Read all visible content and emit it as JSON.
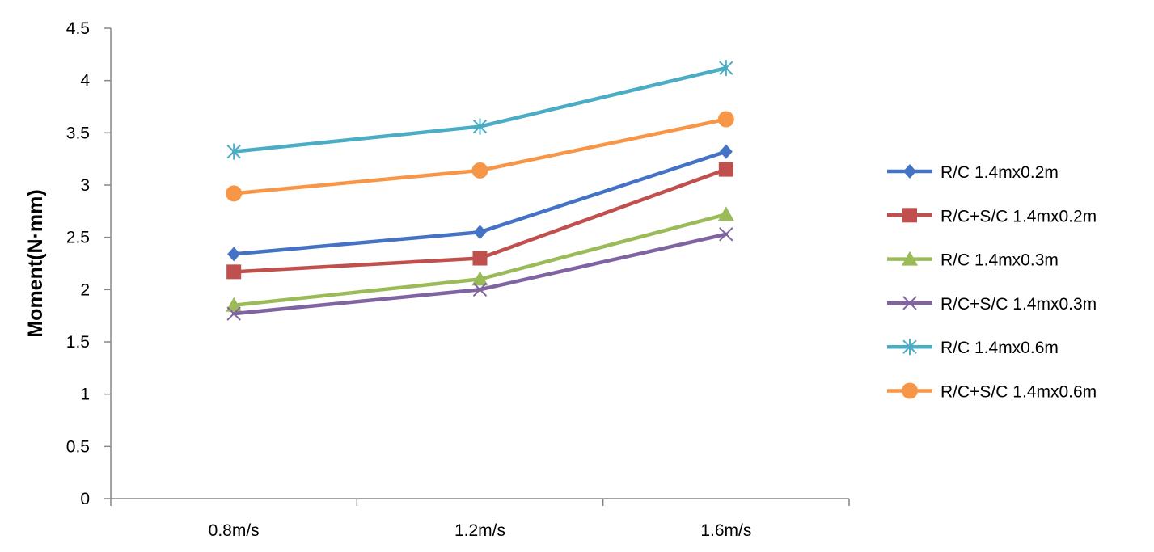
{
  "chart_data": {
    "type": "line",
    "title": "",
    "xlabel": "",
    "ylabel": "Moment(N·mm)",
    "categories": [
      "0.8m/s",
      "1.2m/s",
      "1.6m/s"
    ],
    "ylim": [
      0,
      4.5
    ],
    "yticks": [
      "0",
      "0.5",
      "1",
      "1.5",
      "2",
      "2.5",
      "3",
      "3.5",
      "4",
      "4.5"
    ],
    "grid": false,
    "legend_position": "right",
    "series": [
      {
        "name": "R/C 1.4mx0.2m",
        "values": [
          2.34,
          2.55,
          3.32
        ],
        "color": "#4472C4",
        "marker": "diamond"
      },
      {
        "name": "R/C+S/C 1.4mx0.2m",
        "values": [
          2.17,
          2.3,
          3.15
        ],
        "color": "#C0504D",
        "marker": "square"
      },
      {
        "name": "R/C 1.4mx0.3m",
        "values": [
          1.85,
          2.1,
          2.72
        ],
        "color": "#9BBB59",
        "marker": "triangle"
      },
      {
        "name": "R/C+S/C 1.4mx0.3m",
        "values": [
          1.77,
          2.0,
          2.53
        ],
        "color": "#8064A2",
        "marker": "x"
      },
      {
        "name": "R/C 1.4mx0.6m",
        "values": [
          3.32,
          3.56,
          4.12
        ],
        "color": "#4BACC6",
        "marker": "star"
      },
      {
        "name": "R/C+S/C 1.4mx0.6m",
        "values": [
          2.92,
          3.14,
          3.63
        ],
        "color": "#F79646",
        "marker": "circle"
      }
    ]
  }
}
